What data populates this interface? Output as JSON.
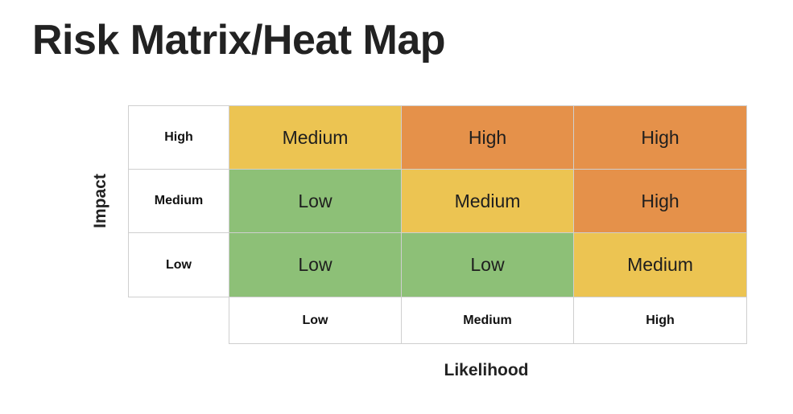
{
  "title": "Risk Matrix/Heat Map",
  "axes": {
    "y_label": "Impact",
    "x_label": "Likelihood"
  },
  "impact_levels": [
    "High",
    "Medium",
    "Low"
  ],
  "likelihood_levels": [
    "Low",
    "Medium",
    "High"
  ],
  "colors": {
    "Low": "#8dc077",
    "Medium": "#ecc452",
    "High": "#e5914a"
  },
  "matrix": [
    [
      "Medium",
      "High",
      "High"
    ],
    [
      "Low",
      "Medium",
      "High"
    ],
    [
      "Low",
      "Low",
      "Medium"
    ]
  ]
}
